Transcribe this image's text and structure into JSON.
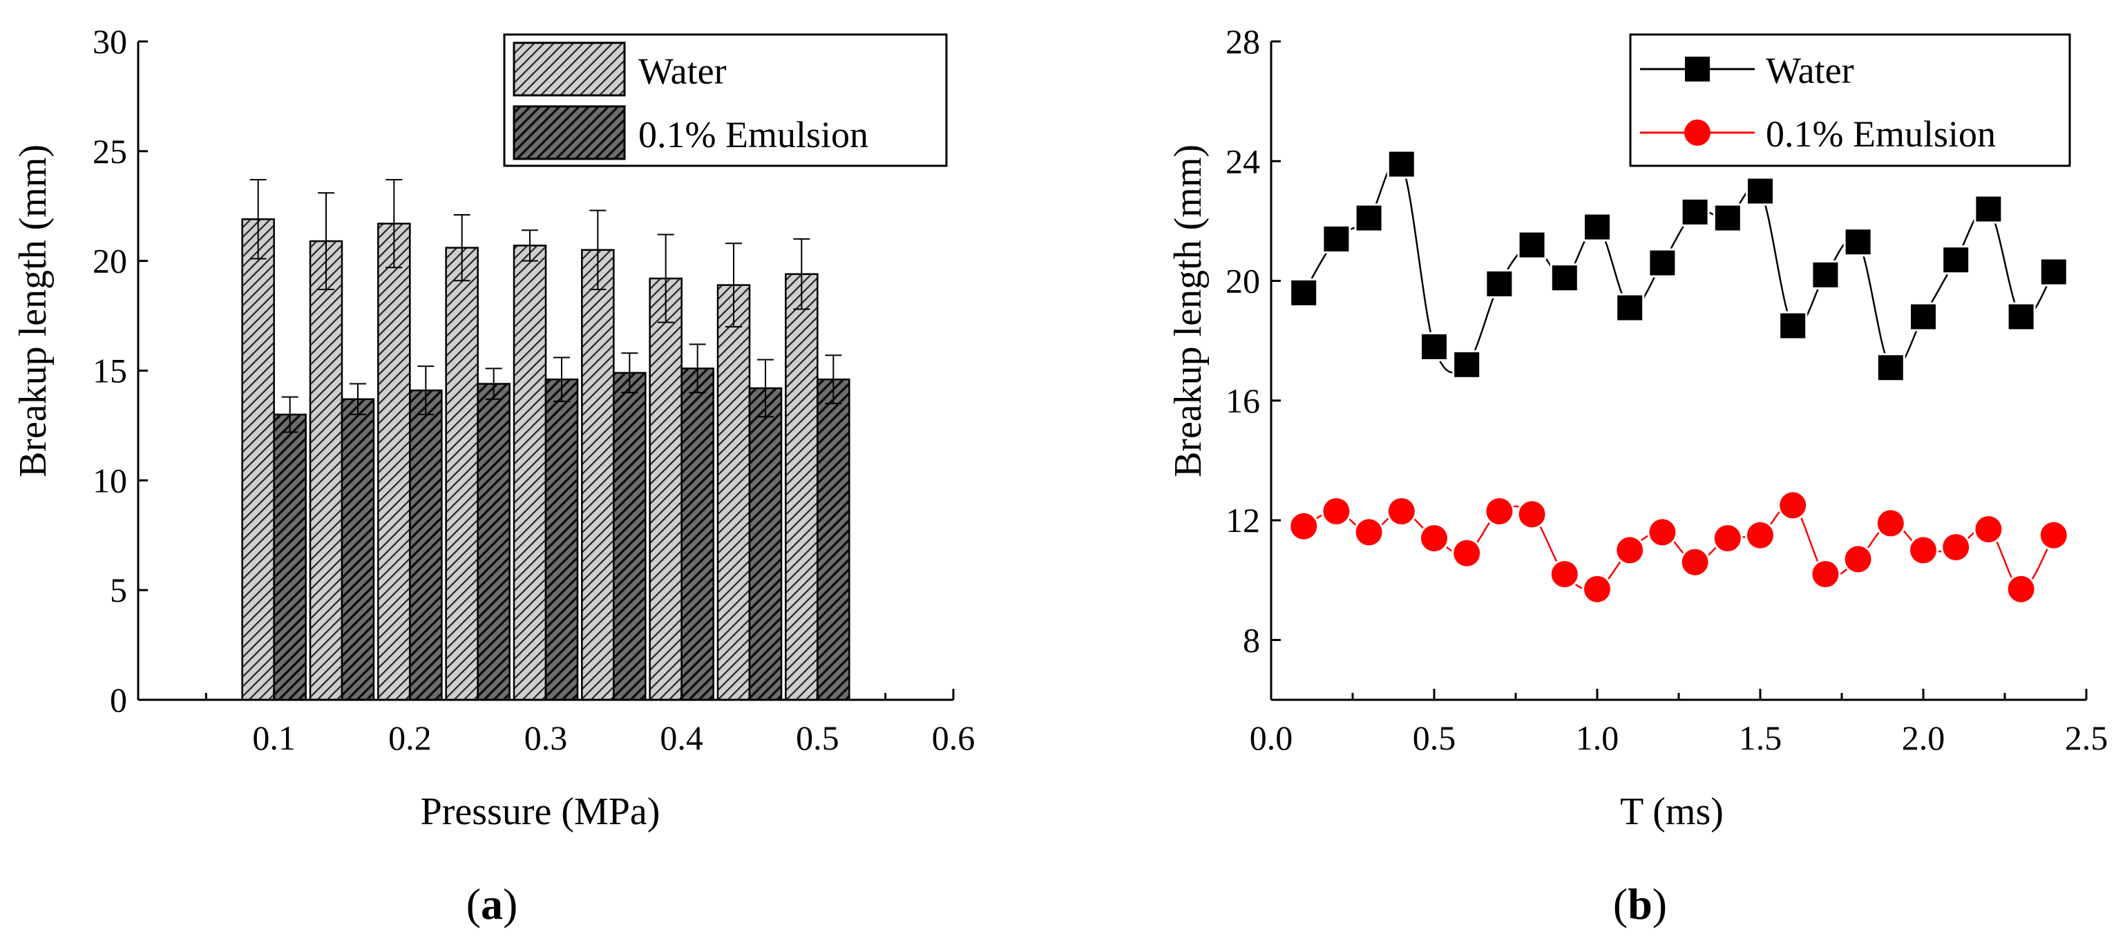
{
  "chart_data": [
    {
      "type": "bar",
      "panel_label": "a",
      "title": "",
      "xlabel": "Pressure (MPa)",
      "ylabel": "Breakup length (mm)",
      "xlim": [
        0.0,
        0.6
      ],
      "ylim": [
        0,
        30
      ],
      "xticks": [
        0.1,
        0.2,
        0.3,
        0.4,
        0.5,
        0.6
      ],
      "xtick_labels": [
        "0.1",
        "0.2",
        "0.3",
        "0.4",
        "0.5",
        "0.6"
      ],
      "yticks": [
        0,
        5,
        10,
        15,
        20,
        25,
        30
      ],
      "ytick_labels": [
        "0",
        "5",
        "10",
        "15",
        "20",
        "25",
        "30"
      ],
      "grid": false,
      "legend_position": "top-right",
      "x": [
        0.1,
        0.15,
        0.2,
        0.25,
        0.3,
        0.35,
        0.4,
        0.45,
        0.5
      ],
      "series": [
        {
          "name": "Water",
          "pattern": "light-hatched",
          "values": [
            21.9,
            20.9,
            21.7,
            20.6,
            20.7,
            20.5,
            19.2,
            18.9,
            19.4
          ],
          "errors": [
            1.8,
            2.2,
            2.0,
            1.5,
            0.7,
            1.8,
            2.0,
            1.9,
            1.6
          ]
        },
        {
          "name": "0.1% Emulsion",
          "pattern": "dark-hatched",
          "values": [
            13.0,
            13.7,
            14.1,
            14.4,
            14.6,
            14.9,
            15.1,
            14.2,
            14.6
          ],
          "errors": [
            0.8,
            0.7,
            1.1,
            0.7,
            1.0,
            0.9,
            1.1,
            1.3,
            1.1
          ]
        }
      ]
    },
    {
      "type": "line",
      "panel_label": "b",
      "title": "",
      "xlabel": "T (ms)",
      "ylabel": "Breakup length (mm)",
      "xlim": [
        0.0,
        2.5
      ],
      "ylim": [
        6,
        28
      ],
      "xticks": [
        0.0,
        0.5,
        1.0,
        1.5,
        2.0,
        2.5
      ],
      "xtick_labels": [
        "0.0",
        "0.5",
        "1.0",
        "1.5",
        "2.0",
        "2.5"
      ],
      "yticks": [
        8,
        12,
        16,
        20,
        24,
        28
      ],
      "ytick_labels": [
        "8",
        "12",
        "16",
        "20",
        "24",
        "28"
      ],
      "grid": false,
      "legend_position": "top-right",
      "x": [
        0.1,
        0.2,
        0.3,
        0.4,
        0.5,
        0.6,
        0.7,
        0.8,
        0.9,
        1.0,
        1.1,
        1.2,
        1.3,
        1.4,
        1.5,
        1.6,
        1.7,
        1.8,
        1.9,
        2.0,
        2.1,
        2.2,
        2.3,
        2.4
      ],
      "series": [
        {
          "name": "Water",
          "color": "#000000",
          "marker": "square",
          "values": [
            19.6,
            21.4,
            22.1,
            23.9,
            17.8,
            17.2,
            19.9,
            21.2,
            20.1,
            21.8,
            19.1,
            20.6,
            22.3,
            22.1,
            23.0,
            18.5,
            20.2,
            21.3,
            17.1,
            18.8,
            20.7,
            22.4,
            18.8,
            20.3
          ]
        },
        {
          "name": "0.1% Emulsion",
          "color": "#ff0000",
          "marker": "circle",
          "values": [
            11.8,
            12.3,
            11.6,
            12.3,
            11.4,
            10.9,
            12.3,
            12.2,
            10.2,
            9.7,
            11.0,
            11.6,
            10.6,
            11.4,
            11.5,
            12.5,
            10.2,
            10.7,
            11.9,
            11.0,
            11.1,
            11.7,
            9.7,
            11.5
          ]
        }
      ]
    }
  ]
}
